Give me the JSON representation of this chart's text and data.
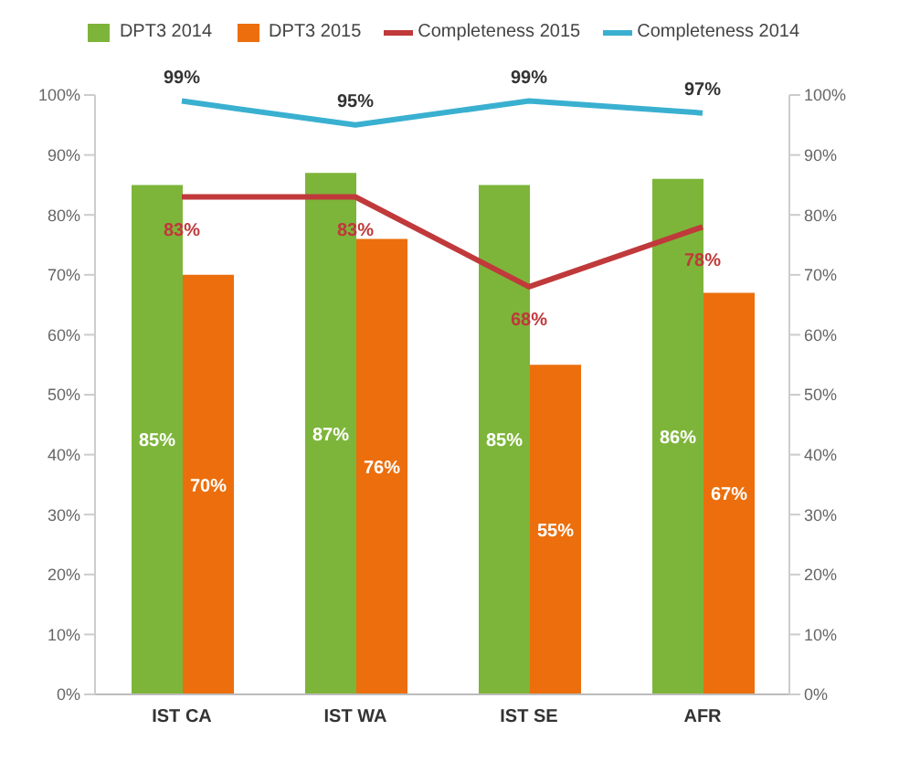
{
  "chart_data": {
    "type": "bar",
    "categories": [
      "IST CA",
      "IST WA",
      "IST SE",
      "AFR"
    ],
    "series": [
      {
        "name": "DPT3 2014",
        "color": "#7db53a",
        "values": [
          85,
          87,
          85,
          86
        ],
        "value_labels": [
          "85%",
          "87%",
          "85%",
          "86%"
        ]
      },
      {
        "name": "DPT3 2015",
        "color": "#ec6e0c",
        "values": [
          70,
          76,
          55,
          67
        ],
        "value_labels": [
          "70%",
          "76%",
          "55%",
          "67%"
        ]
      },
      {
        "name": "Completeness 2015",
        "type": "line",
        "color": "#c0393b",
        "values": [
          83,
          83,
          68,
          78
        ],
        "value_labels": [
          "83%",
          "83%",
          "68%",
          "78%"
        ]
      },
      {
        "name": "Completeness 2014",
        "type": "line",
        "color": "#3ab0d0",
        "values": [
          99,
          95,
          99,
          97
        ],
        "value_labels": [
          "99%",
          "95%",
          "99%",
          "97%"
        ]
      }
    ],
    "ylim": [
      0,
      100
    ],
    "yticks": [
      {
        "value": 0,
        "label": "0%"
      },
      {
        "value": 10,
        "label": "10%"
      },
      {
        "value": 20,
        "label": "20%"
      },
      {
        "value": 30,
        "label": "30%"
      },
      {
        "value": 40,
        "label": "40%"
      },
      {
        "value": 50,
        "label": "50%"
      },
      {
        "value": 60,
        "label": "60%"
      },
      {
        "value": 70,
        "label": "70%"
      },
      {
        "value": 80,
        "label": "80%"
      },
      {
        "value": 90,
        "label": "90%"
      },
      {
        "value": 100,
        "label": "100%"
      }
    ],
    "y2lim": [
      0,
      100
    ],
    "y2ticks": [
      {
        "value": 0,
        "label": "0%"
      },
      {
        "value": 10,
        "label": "10%"
      },
      {
        "value": 20,
        "label": "20%"
      },
      {
        "value": 30,
        "label": "30%"
      },
      {
        "value": 40,
        "label": "40%"
      },
      {
        "value": 50,
        "label": "50%"
      },
      {
        "value": 60,
        "label": "60%"
      },
      {
        "value": 70,
        "label": "70%"
      },
      {
        "value": 80,
        "label": "80%"
      },
      {
        "value": 90,
        "label": "90%"
      },
      {
        "value": 100,
        "label": "100%"
      }
    ],
    "grid": false,
    "legend": "top",
    "marker": "none",
    "line_style": "solid"
  }
}
